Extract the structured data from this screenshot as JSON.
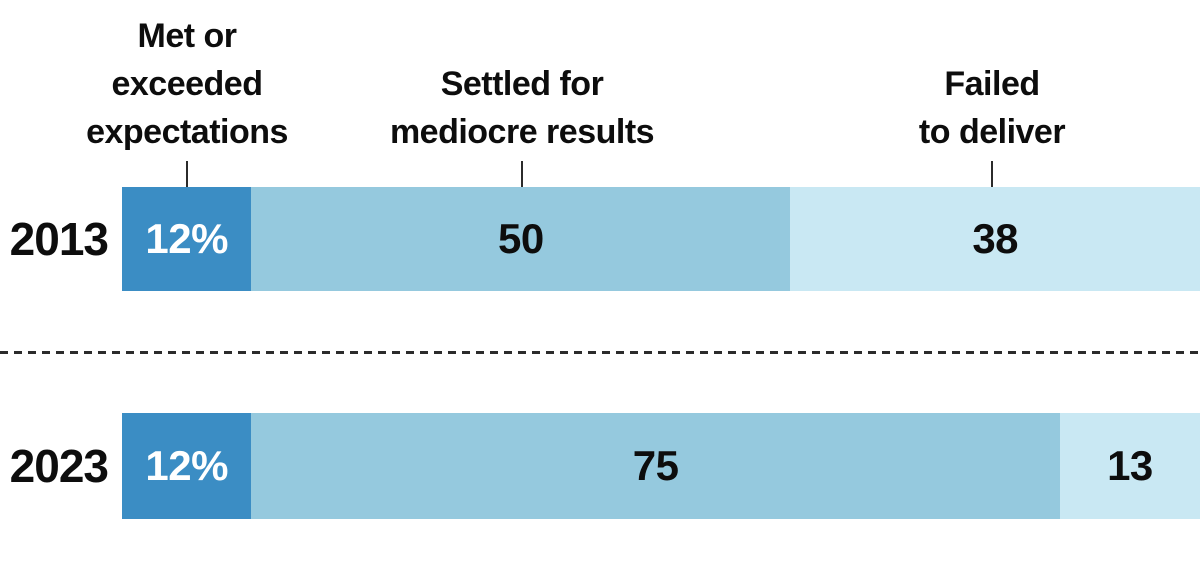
{
  "header": {
    "labels": [
      {
        "text": "Met or\nexceeded\nexpectations"
      },
      {
        "text": "Settled for\nmediocre results"
      },
      {
        "text": "Failed\nto deliver"
      }
    ]
  },
  "chart_data": {
    "type": "bar",
    "variant": "horizontal-stacked",
    "title": "",
    "categories": [
      "2013",
      "2023"
    ],
    "series": [
      {
        "name": "Met or exceeded expectations",
        "color": "#3b8dc4",
        "label_color": "#ffffff",
        "values": [
          12,
          12
        ],
        "labels": [
          "12%",
          "12%"
        ]
      },
      {
        "name": "Settled for mediocre results",
        "color": "#95c9de",
        "label_color": "#0d0d0d",
        "values": [
          50,
          75
        ],
        "labels": [
          "50",
          "75"
        ]
      },
      {
        "name": "Failed to deliver",
        "color": "#c9e8f3",
        "label_color": "#0d0d0d",
        "values": [
          38,
          13
        ],
        "labels": [
          "38",
          "13"
        ]
      }
    ],
    "xlim": [
      0,
      100
    ],
    "unit": "percent",
    "grid": false,
    "legend_position": "top-as-column-headers",
    "divider_between_rows": "dashed-line",
    "text_color": "#0d0d0d",
    "background_color": "#ffffff"
  }
}
